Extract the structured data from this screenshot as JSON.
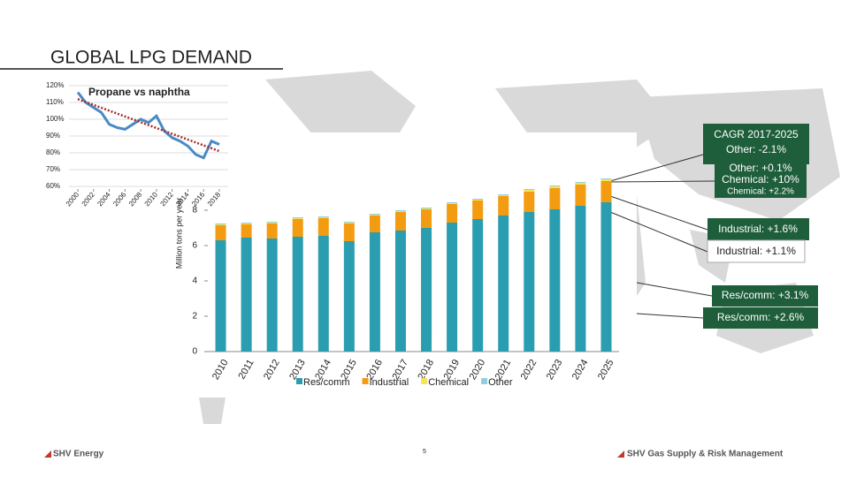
{
  "header": {
    "title": "GLOBAL LPG DEMAND"
  },
  "footer": {
    "left": "SHV Energy",
    "page": "5",
    "right": "SHV Gas Supply & Risk Management"
  },
  "chart_data": [
    {
      "type": "bar",
      "stacked": true,
      "ylabel": "Million tons per year",
      "categories": [
        "2010",
        "2011",
        "2012",
        "2013",
        "2014",
        "2015",
        "2016",
        "2017",
        "2018",
        "2019",
        "2020",
        "2021",
        "2022",
        "2023",
        "2024",
        "2025"
      ],
      "series": [
        {
          "name": "Res/comm",
          "color": "#2a9db0",
          "values": [
            6.3,
            6.45,
            6.4,
            6.5,
            6.55,
            6.25,
            6.75,
            6.85,
            7.0,
            7.3,
            7.5,
            7.7,
            7.9,
            8.05,
            8.25,
            8.45
          ]
        },
        {
          "name": "Industrial",
          "color": "#f39c12",
          "values": [
            0.85,
            0.75,
            0.85,
            1.0,
            1.0,
            1.0,
            0.95,
            1.05,
            1.05,
            1.05,
            1.05,
            1.1,
            1.15,
            1.2,
            1.2,
            1.2
          ]
        },
        {
          "name": "Chemical",
          "color": "#f5e35a",
          "values": [
            0.05,
            0.05,
            0.05,
            0.05,
            0.05,
            0.05,
            0.05,
            0.05,
            0.05,
            0.05,
            0.05,
            0.05,
            0.1,
            0.1,
            0.1,
            0.1
          ]
        },
        {
          "name": "Other",
          "color": "#8fd0df",
          "values": [
            0.05,
            0.05,
            0.05,
            0.05,
            0.05,
            0.05,
            0.05,
            0.05,
            0.05,
            0.05,
            0.05,
            0.05,
            0.05,
            0.05,
            0.05,
            0.05
          ]
        }
      ],
      "ylim": [
        0,
        12
      ],
      "yticks": [
        0,
        2,
        4,
        6,
        8
      ],
      "annotations": [
        "CAGR 2017-2025",
        "Other: -2.1%",
        "Other: +0.1%",
        "Chemical: +10%",
        "Chemical: +2.2%",
        "Industrial: +1.6%",
        "Industrial: +1.1%",
        "Res/comm: +3.1%",
        "Res/comm: +2.6%"
      ]
    },
    {
      "type": "line",
      "title": "Propane vs naphtha",
      "x": [
        2000,
        2001,
        2002,
        2003,
        2004,
        2005,
        2006,
        2007,
        2008,
        2009,
        2010,
        2011,
        2012,
        2013,
        2014,
        2015,
        2016,
        2017,
        2018
      ],
      "series": [
        {
          "color": "#4a8ac4",
          "values": [
            116,
            110,
            107,
            104,
            97,
            95,
            94,
            97,
            100,
            98,
            102,
            93,
            89,
            87,
            84,
            79,
            77,
            87,
            85
          ]
        }
      ],
      "trendline": {
        "color": "#a52a2a",
        "x": [
          2000,
          2018
        ],
        "values": [
          112,
          81
        ]
      },
      "xlim": [
        2000,
        2018
      ],
      "xticks": [
        2000,
        2002,
        2004,
        2006,
        2008,
        2010,
        2012,
        2014,
        2016,
        2018
      ],
      "ylim": [
        60,
        120
      ],
      "yticks": [
        {
          "value": 60,
          "label": "60%"
        },
        {
          "value": 70,
          "label": "70%"
        },
        {
          "value": 80,
          "label": "80%"
        },
        {
          "value": 90,
          "label": "90%"
        },
        {
          "value": 100,
          "label": "100%"
        },
        {
          "value": 110,
          "label": "110%"
        },
        {
          "value": 120,
          "label": "120%"
        }
      ]
    }
  ]
}
